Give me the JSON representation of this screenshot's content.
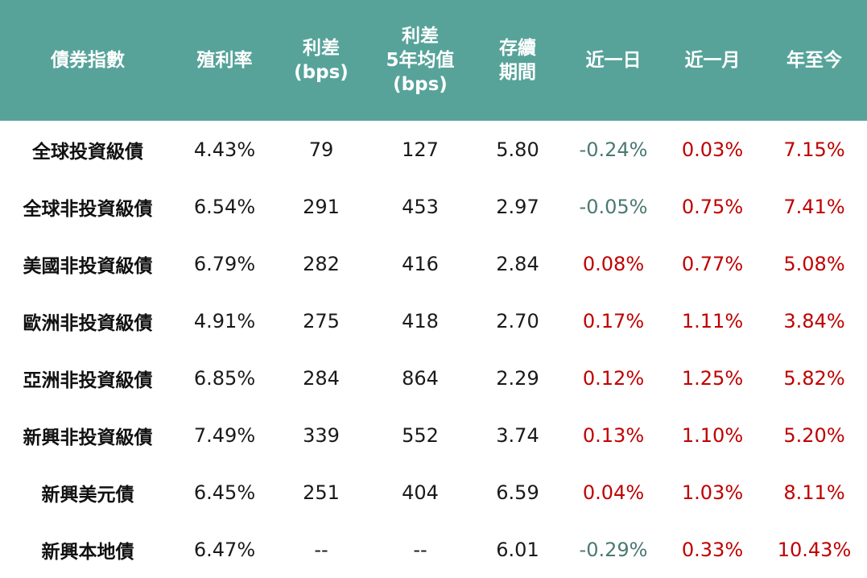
{
  "colors": {
    "header_bg": "#57a39a",
    "header_text": "#ffffff",
    "positive": "#c00000",
    "negative": "#4a7a72"
  },
  "chart_data": {
    "type": "table",
    "columns": [
      [
        "債券指數"
      ],
      [
        "殖利率"
      ],
      [
        "利差",
        "(bps)"
      ],
      [
        "利差",
        "5年均值",
        "(bps)"
      ],
      [
        "存續",
        "期間"
      ],
      [
        "近一日"
      ],
      [
        "近一月"
      ],
      [
        "年至今"
      ]
    ],
    "rows": [
      {
        "name": "全球投資級債",
        "yield": "4.43%",
        "spread": "79",
        "spread5y": "127",
        "duration": "5.80",
        "d1": "-0.24%",
        "m1": "0.03%",
        "ytd": "7.15%"
      },
      {
        "name": "全球非投資級債",
        "yield": "6.54%",
        "spread": "291",
        "spread5y": "453",
        "duration": "2.97",
        "d1": "-0.05%",
        "m1": "0.75%",
        "ytd": "7.41%"
      },
      {
        "name": "美國非投資級債",
        "yield": "6.79%",
        "spread": "282",
        "spread5y": "416",
        "duration": "2.84",
        "d1": "0.08%",
        "m1": "0.77%",
        "ytd": "5.08%"
      },
      {
        "name": "歐洲非投資級債",
        "yield": "4.91%",
        "spread": "275",
        "spread5y": "418",
        "duration": "2.70",
        "d1": "0.17%",
        "m1": "1.11%",
        "ytd": "3.84%"
      },
      {
        "name": "亞洲非投資級債",
        "yield": "6.85%",
        "spread": "284",
        "spread5y": "864",
        "duration": "2.29",
        "d1": "0.12%",
        "m1": "1.25%",
        "ytd": "5.82%"
      },
      {
        "name": "新興非投資級債",
        "yield": "7.49%",
        "spread": "339",
        "spread5y": "552",
        "duration": "3.74",
        "d1": "0.13%",
        "m1": "1.10%",
        "ytd": "5.20%"
      },
      {
        "name": "新興美元債",
        "yield": "6.45%",
        "spread": "251",
        "spread5y": "404",
        "duration": "6.59",
        "d1": "0.04%",
        "m1": "1.03%",
        "ytd": "8.11%"
      },
      {
        "name": "新興本地債",
        "yield": "6.47%",
        "spread": "--",
        "spread5y": "--",
        "duration": "6.01",
        "d1": "-0.29%",
        "m1": "0.33%",
        "ytd": "10.43%"
      }
    ]
  }
}
